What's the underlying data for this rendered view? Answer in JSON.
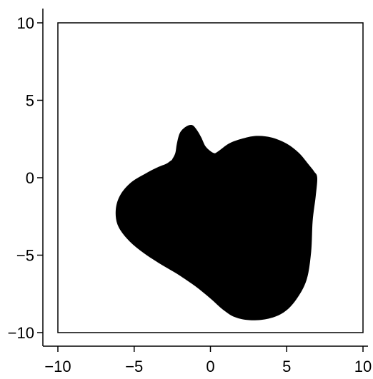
{
  "chart_data": {
    "type": "area",
    "title": "",
    "xlabel": "",
    "ylabel": "",
    "xlim": [
      -10,
      10
    ],
    "ylim": [
      -10,
      10
    ],
    "grid": false,
    "frame": "box",
    "xticks": [
      -10,
      -5,
      0,
      5,
      10
    ],
    "yticks": [
      -10,
      -5,
      0,
      5,
      10
    ],
    "xtick_labels": [
      "−10",
      "−5",
      "0",
      "5",
      "10"
    ],
    "ytick_labels": [
      "−10",
      "−5",
      "0",
      "5",
      "10"
    ],
    "fill_color": "#000000",
    "axis_color": "#000000",
    "series": [
      {
        "fill": true,
        "closed": true,
        "x": [
          -2.5,
          -2.3,
          -2.2,
          -2.0,
          -1.6,
          -1.2,
          -0.9,
          -0.6,
          -0.3,
          0.2,
          0.5,
          1.2,
          2.0,
          3.0,
          4.0,
          5.0,
          5.8,
          6.4,
          6.8,
          7.0,
          6.9,
          6.7,
          6.6,
          6.3,
          5.6,
          4.8,
          3.8,
          2.6,
          1.6,
          0.8,
          0.0,
          -1.0,
          -2.2,
          -3.4,
          -4.6,
          -5.5,
          -6.1,
          -6.2,
          -5.9,
          -5.2,
          -4.2,
          -3.4,
          -2.9,
          -2.6
        ],
        "y": [
          1.2,
          1.6,
          2.2,
          2.9,
          3.3,
          3.4,
          3.1,
          2.6,
          2.0,
          1.6,
          1.7,
          2.2,
          2.5,
          2.7,
          2.6,
          2.2,
          1.6,
          0.9,
          0.4,
          0.0,
          -1.2,
          -2.8,
          -4.8,
          -6.6,
          -7.9,
          -8.7,
          -9.1,
          -9.2,
          -9.0,
          -8.5,
          -7.8,
          -7.0,
          -6.2,
          -5.5,
          -4.7,
          -3.9,
          -3.0,
          -2.0,
          -1.1,
          -0.3,
          0.3,
          0.7,
          0.9,
          1.1
        ]
      }
    ]
  }
}
